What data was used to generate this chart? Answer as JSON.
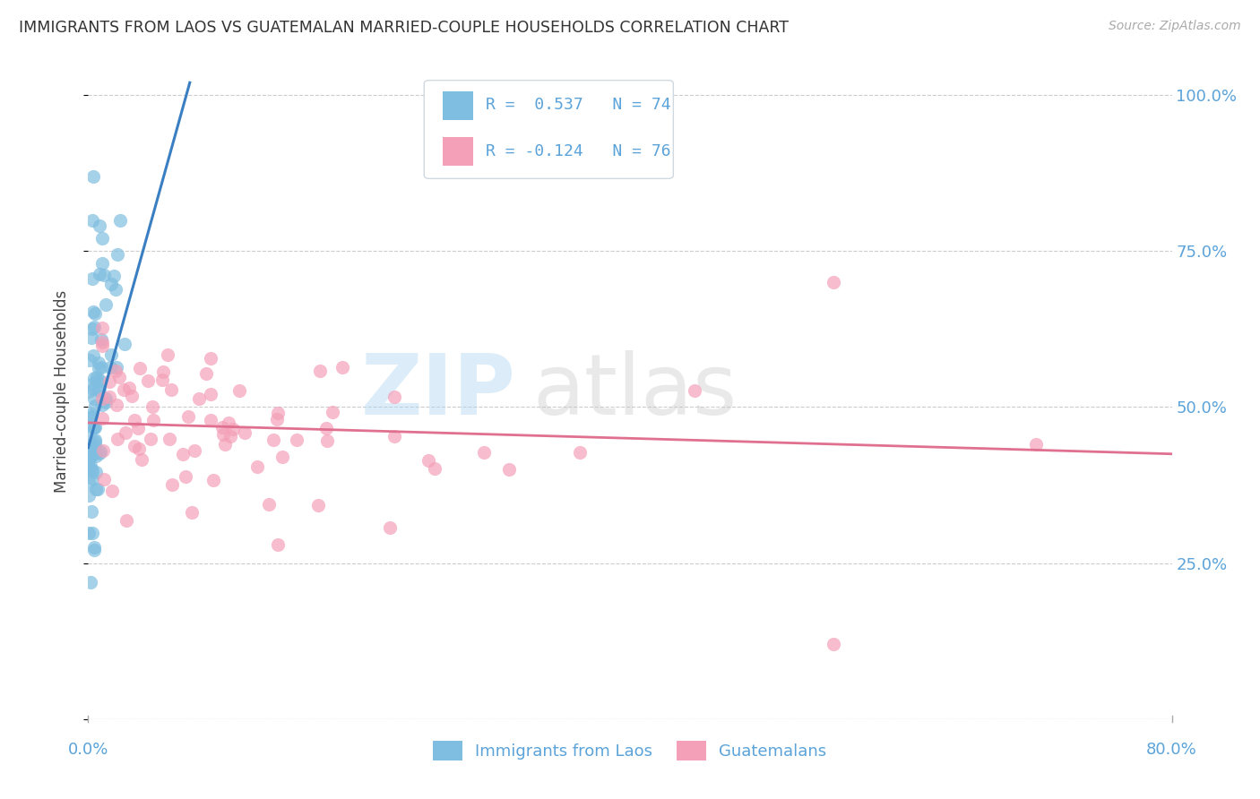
{
  "title": "IMMIGRANTS FROM LAOS VS GUATEMALAN MARRIED-COUPLE HOUSEHOLDS CORRELATION CHART",
  "source": "Source: ZipAtlas.com",
  "ylabel": "Married-couple Households",
  "legend_blue_r": "R =  0.537",
  "legend_blue_n": "N = 74",
  "legend_pink_r": "R = -0.124",
  "legend_pink_n": "N = 76",
  "legend_label_blue": "Immigrants from Laos",
  "legend_label_pink": "Guatemalans",
  "blue_color": "#7fbee0",
  "pink_color": "#f4a0b8",
  "line_blue_color": "#3a7fc1",
  "line_pink_color": "#e07090",
  "axis_color": "#5ba3d9",
  "grid_color": "#cccccc",
  "xlim": [
    0.0,
    0.8
  ],
  "ylim": [
    0.0,
    1.05
  ],
  "ytick_vals": [
    0.0,
    0.25,
    0.5,
    0.75,
    1.0
  ],
  "ytick_labels": [
    "",
    "25.0%",
    "50.0%",
    "75.0%",
    "100.0%"
  ],
  "xtick_left": "0.0%",
  "xtick_right": "80.0%",
  "blue_line_x": [
    0.0,
    0.075
  ],
  "blue_line_y": [
    0.435,
    1.02
  ],
  "pink_line_x": [
    0.0,
    0.8
  ],
  "pink_line_y": [
    0.475,
    0.425
  ]
}
